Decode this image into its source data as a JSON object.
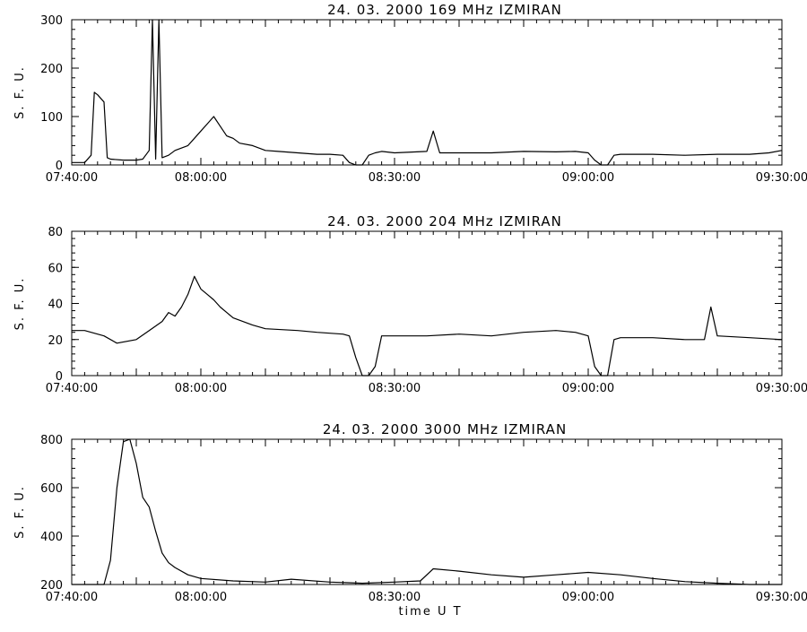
{
  "xlabel": "time   U T",
  "chart_data": [
    {
      "type": "line",
      "title": "24.  03.  2000    169  MHz    IZMIRAN",
      "ylabel": "S. F. U.",
      "xlim": [
        "07:40:00",
        "09:30:00"
      ],
      "ylim": [
        0,
        300
      ],
      "yticks": [
        0,
        100,
        200,
        300
      ],
      "xticks": [
        "07:40:00",
        "08:00:00",
        "08:30:00",
        "09:00:00",
        "09:30:00"
      ],
      "series": [
        {
          "x": [
            "07:40:00",
            "07:41:00",
            "07:42:00",
            "07:43:00",
            "07:43:30",
            "07:44:00",
            "07:45:00",
            "07:45:30",
            "07:46:00",
            "07:48:00",
            "07:50:00",
            "07:51:00",
            "07:52:00",
            "07:52:30",
            "07:53:00",
            "07:53:30",
            "07:54:00",
            "07:55:00",
            "07:56:00",
            "07:58:00",
            "07:59:00",
            "08:00:00",
            "08:01:00",
            "08:02:00",
            "08:03:00",
            "08:04:00",
            "08:05:00",
            "08:06:00",
            "08:08:00",
            "08:10:00",
            "08:12:00",
            "08:15:00",
            "08:18:00",
            "08:20:00",
            "08:22:00",
            "08:23:00",
            "08:24:00",
            "08:25:00",
            "08:26:00",
            "08:27:00",
            "08:28:00",
            "08:30:00",
            "08:35:00",
            "08:36:00",
            "08:37:00",
            "08:40:00",
            "08:45:00",
            "08:50:00",
            "08:55:00",
            "08:58:00",
            "09:00:00",
            "09:01:00",
            "09:02:00",
            "09:03:00",
            "09:04:00",
            "09:05:00",
            "09:10:00",
            "09:15:00",
            "09:20:00",
            "09:25:00",
            "09:28:00",
            "09:30:00"
          ],
          "y": [
            5,
            5,
            5,
            20,
            150,
            145,
            130,
            15,
            12,
            10,
            10,
            12,
            30,
            300,
            12,
            300,
            15,
            20,
            30,
            40,
            55,
            70,
            85,
            100,
            80,
            60,
            55,
            45,
            40,
            30,
            28,
            25,
            22,
            22,
            20,
            5,
            -5,
            -10,
            20,
            25,
            28,
            25,
            28,
            70,
            25,
            25,
            25,
            28,
            27,
            28,
            25,
            10,
            -5,
            -5,
            20,
            22,
            22,
            20,
            22,
            22,
            25,
            30
          ]
        }
      ]
    },
    {
      "type": "line",
      "title": "24.  03.  2000    204  MHz    IZMIRAN",
      "ylabel": "S. F. U.",
      "xlim": [
        "07:40:00",
        "09:30:00"
      ],
      "ylim": [
        0,
        80
      ],
      "yticks": [
        0,
        20,
        40,
        60,
        80
      ],
      "xticks": [
        "07:40:00",
        "08:00:00",
        "08:30:00",
        "09:00:00",
        "09:30:00"
      ],
      "series": [
        {
          "x": [
            "07:40:00",
            "07:42:00",
            "07:45:00",
            "07:47:00",
            "07:50:00",
            "07:52:00",
            "07:54:00",
            "07:55:00",
            "07:56:00",
            "07:57:00",
            "07:58:00",
            "07:59:00",
            "08:00:00",
            "08:01:00",
            "08:02:00",
            "08:03:00",
            "08:05:00",
            "08:08:00",
            "08:10:00",
            "08:15:00",
            "08:18:00",
            "08:22:00",
            "08:23:00",
            "08:24:00",
            "08:25:00",
            "08:26:00",
            "08:27:00",
            "08:28:00",
            "08:30:00",
            "08:35:00",
            "08:40:00",
            "08:45:00",
            "08:50:00",
            "08:55:00",
            "08:58:00",
            "09:00:00",
            "09:01:00",
            "09:02:00",
            "09:03:00",
            "09:04:00",
            "09:05:00",
            "09:10:00",
            "09:15:00",
            "09:18:00",
            "09:19:00",
            "09:20:00",
            "09:25:00",
            "09:30:00"
          ],
          "y": [
            25,
            25,
            22,
            18,
            20,
            25,
            30,
            35,
            33,
            38,
            45,
            55,
            48,
            45,
            42,
            38,
            32,
            28,
            26,
            25,
            24,
            23,
            22,
            10,
            0,
            0,
            5,
            22,
            22,
            22,
            23,
            22,
            24,
            25,
            24,
            22,
            5,
            0,
            0,
            20,
            21,
            21,
            20,
            20,
            38,
            22,
            21,
            20
          ]
        }
      ]
    },
    {
      "type": "line",
      "title": "24.  03.  2000    3000  MHz    IZMIRAN",
      "ylabel": "S. F. U.",
      "xlim": [
        "07:40:00",
        "09:30:00"
      ],
      "ylim": [
        200,
        800
      ],
      "yticks": [
        200,
        400,
        600,
        800
      ],
      "xticks": [
        "07:40:00",
        "08:00:00",
        "08:30:00",
        "09:00:00",
        "09:30:00"
      ],
      "series": [
        {
          "x": [
            "07:40:00",
            "07:43:00",
            "07:45:00",
            "07:46:00",
            "07:47:00",
            "07:48:00",
            "07:49:00",
            "07:50:00",
            "07:51:00",
            "07:52:00",
            "07:53:00",
            "07:54:00",
            "07:55:00",
            "07:56:00",
            "07:58:00",
            "08:00:00",
            "08:05:00",
            "08:10:00",
            "08:14:00",
            "08:20:00",
            "08:25:00",
            "08:30:00",
            "08:34:00",
            "08:36:00",
            "08:40:00",
            "08:45:00",
            "08:50:00",
            "08:55:00",
            "09:00:00",
            "09:05:00",
            "09:10:00",
            "09:15:00",
            "09:20:00",
            "09:25:00",
            "09:30:00"
          ],
          "y": [
            195,
            195,
            200,
            300,
            600,
            790,
            800,
            700,
            560,
            520,
            420,
            330,
            290,
            270,
            240,
            225,
            215,
            210,
            222,
            210,
            205,
            210,
            215,
            265,
            255,
            240,
            230,
            240,
            250,
            240,
            225,
            212,
            205,
            200,
            200
          ]
        }
      ]
    }
  ]
}
